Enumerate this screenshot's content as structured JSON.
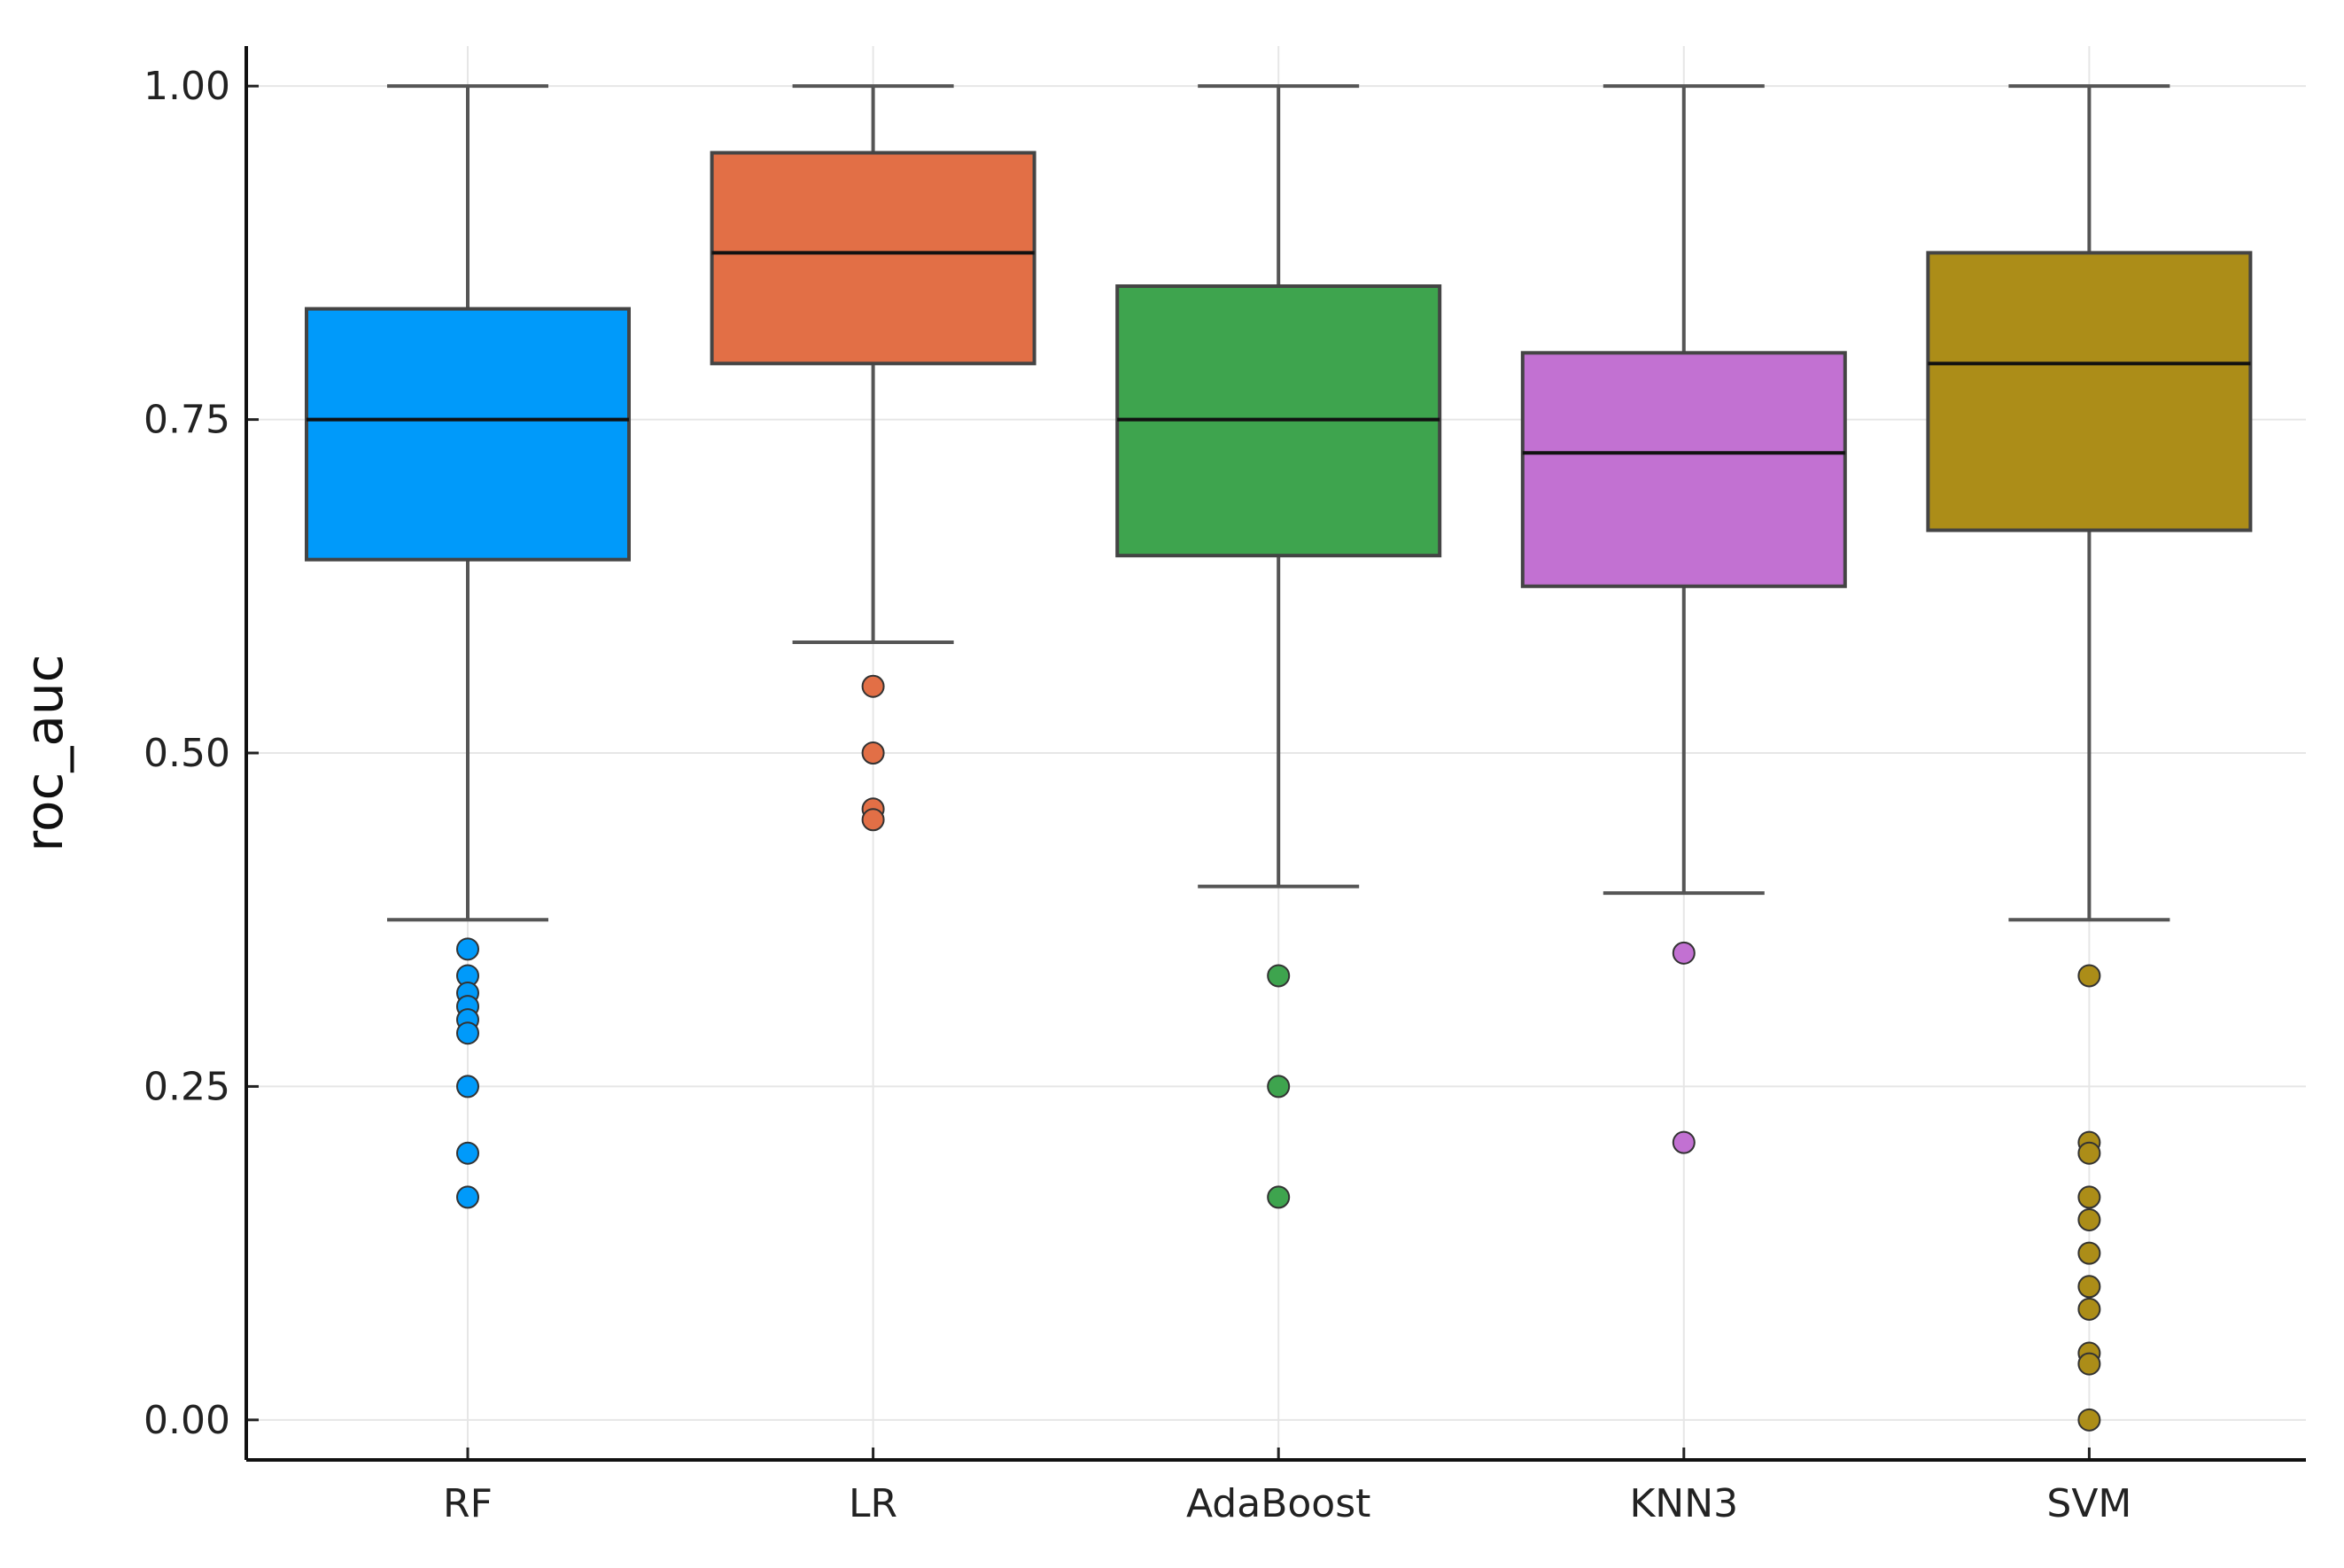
{
  "chart_data": {
    "type": "box",
    "title": "",
    "xlabel": "",
    "ylabel": "roc_auc",
    "ylim": [
      -0.03,
      1.03
    ],
    "yticks": [
      0.0,
      0.25,
      0.5,
      0.75,
      1.0
    ],
    "ytick_labels": [
      "0.00",
      "0.25",
      "0.50",
      "0.75",
      "1.00"
    ],
    "grid": true,
    "legend": "none",
    "categories": [
      "RF",
      "LR",
      "AdaBoost",
      "KNN3",
      "SVM"
    ],
    "series": [
      {
        "name": "RF",
        "color": "#009AFA",
        "whisker_low": 0.375,
        "q1": 0.645,
        "median": 0.75,
        "q3": 0.833,
        "whisker_high": 1.0,
        "outliers": [
          0.353,
          0.333,
          0.32,
          0.31,
          0.3,
          0.29,
          0.25,
          0.2,
          0.167
        ]
      },
      {
        "name": "LR",
        "color": "#E26F46",
        "whisker_low": 0.583,
        "q1": 0.792,
        "median": 0.875,
        "q3": 0.95,
        "whisker_high": 1.0,
        "outliers": [
          0.55,
          0.5,
          0.458,
          0.45
        ]
      },
      {
        "name": "AdaBoost",
        "color": "#3EA44E",
        "whisker_low": 0.4,
        "q1": 0.648,
        "median": 0.75,
        "q3": 0.85,
        "whisker_high": 1.0,
        "outliers": [
          0.333,
          0.25,
          0.167
        ]
      },
      {
        "name": "KNN3",
        "color": "#C271D2",
        "whisker_low": 0.395,
        "q1": 0.625,
        "median": 0.725,
        "q3": 0.8,
        "whisker_high": 1.0,
        "outliers": [
          0.35,
          0.208
        ]
      },
      {
        "name": "SVM",
        "color": "#AC8D18",
        "whisker_low": 0.375,
        "q1": 0.667,
        "median": 0.792,
        "q3": 0.875,
        "whisker_high": 1.0,
        "outliers": [
          0.333,
          0.208,
          0.2,
          0.167,
          0.15,
          0.125,
          0.1,
          0.083,
          0.05,
          0.042,
          0.0
        ]
      }
    ]
  }
}
